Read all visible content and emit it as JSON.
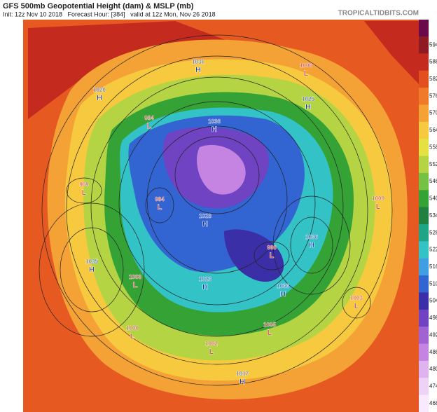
{
  "header": {
    "title": "GFS 500mb Geopotential Height (dam) & MSLP (mb)",
    "init": "Init: 12z Nov 10 2018   Forecast Hour: [384]   valid at 12z Mon, Nov 26 2018",
    "source": "TROPICALTIDBITS.COM"
  },
  "colorbar": {
    "levels": [
      594,
      588,
      582,
      576,
      570,
      564,
      558,
      552,
      546,
      540,
      534,
      528,
      522,
      516,
      510,
      504,
      498,
      492,
      486,
      480,
      474,
      468
    ],
    "colors": [
      "#8e1a22",
      "#c52a1f",
      "#e2501f",
      "#ef7a2a",
      "#f4a236",
      "#f6c93e",
      "#e6e142",
      "#b4d444",
      "#74c143",
      "#35a236",
      "#217f3f",
      "#1fa486",
      "#33c2c6",
      "#3f9fe2",
      "#3264d2",
      "#3b2fa8",
      "#6f43c2",
      "#a162d2",
      "#c584e2",
      "#dfb2f0",
      "#efd3f7",
      "#f8eafc"
    ]
  },
  "map": {
    "centers": [
      {
        "type": "H",
        "pressure": 1031
      },
      {
        "type": "L",
        "pressure": 1006
      },
      {
        "type": "H",
        "pressure": 1020
      },
      {
        "type": "H",
        "pressure": 1025
      },
      {
        "type": "L",
        "pressure": 984
      },
      {
        "type": "H",
        "pressure": 1036
      },
      {
        "type": "L",
        "pressure": 969
      },
      {
        "type": "L",
        "pressure": 984
      },
      {
        "type": "H",
        "pressure": 1028
      },
      {
        "type": "L",
        "pressure": 1009
      },
      {
        "type": "H",
        "pressure": 1036
      },
      {
        "type": "L",
        "pressure": 966
      },
      {
        "type": "H",
        "pressure": 1035
      },
      {
        "type": "L",
        "pressure": 1003
      },
      {
        "type": "H",
        "pressure": 1023
      },
      {
        "type": "H",
        "pressure": 1033
      },
      {
        "type": "L",
        "pressure": 1003
      },
      {
        "type": "L",
        "pressure": 1000
      },
      {
        "type": "L",
        "pressure": 1005
      },
      {
        "type": "L",
        "pressure": 1002
      },
      {
        "type": "H",
        "pressure": 1017
      }
    ]
  }
}
